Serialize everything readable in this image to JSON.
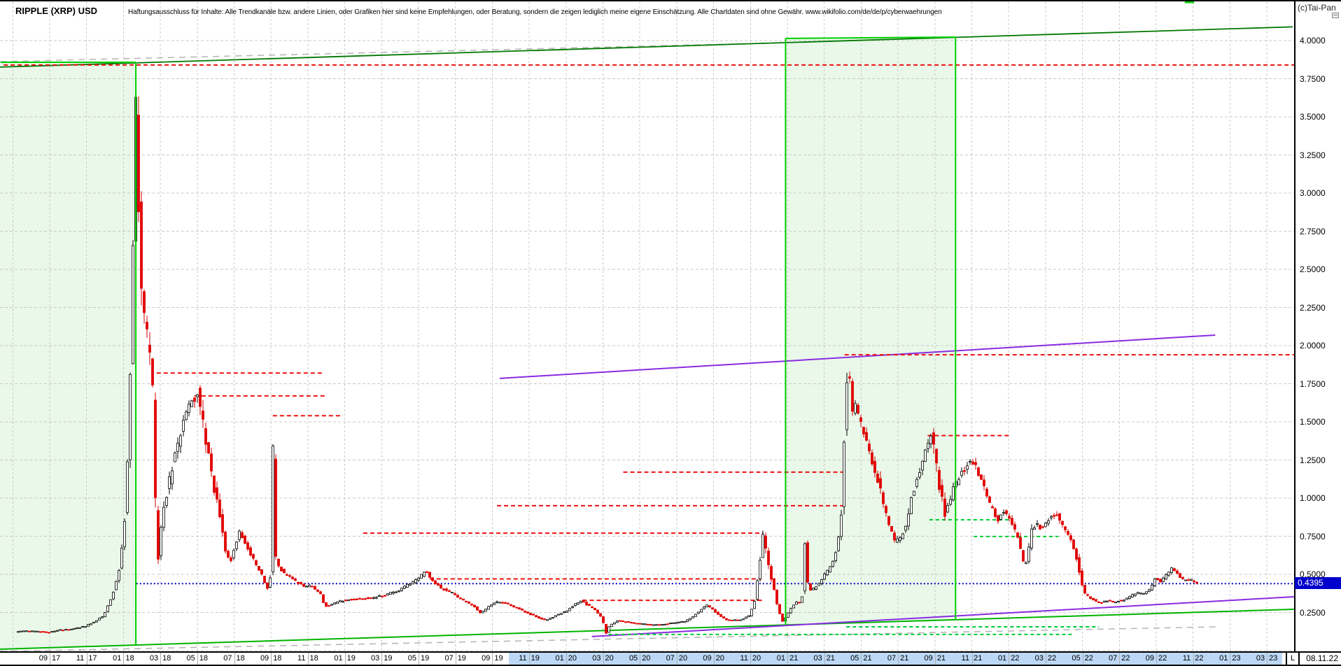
{
  "window": {
    "title": "RIPPLE (XRP) USD",
    "copyright": "(c)Tai-Pan",
    "disclaimer": "Haftungsausschluss für Inhalte: Alle Trendkanäle bzw. andere Linien, oder Grafiken hier sind keine Empfehlungen, oder Beratung, sondern die zeigen lediglich meine eigene Einschätzung. Alle Chartdaten sind ohne Gewähr.  www.wikifolio.com/de/de/p/cyberwaehrungen"
  },
  "status_bar": {
    "period_letter": "L",
    "last_session": "08.11.22"
  },
  "y_axis": {
    "tick_labels": [
      "4.0000",
      "3.7500",
      "3.5000",
      "3.2500",
      "3.0000",
      "2.7500",
      "2.5000",
      "2.2500",
      "2.0000",
      "1.7500",
      "1.5000",
      "1.2500",
      "1.0000",
      "0.7500",
      "0.5000",
      "0.2500"
    ],
    "tick_prices": [
      4.0,
      3.75,
      3.5,
      3.25,
      3.0,
      2.75,
      2.5,
      2.25,
      2.0,
      1.75,
      1.5,
      1.25,
      1.0,
      0.75,
      0.5,
      0.25
    ],
    "current_price_label": "0.4395",
    "current_price": 0.4395
  },
  "x_axis": {
    "tick_labels": [
      [
        "09",
        "17"
      ],
      [
        "11",
        "17"
      ],
      [
        "01",
        "18"
      ],
      [
        "03",
        "18"
      ],
      [
        "05",
        "18"
      ],
      [
        "07",
        "18"
      ],
      [
        "09",
        "18"
      ],
      [
        "11",
        "18"
      ],
      [
        "01",
        "19"
      ],
      [
        "03",
        "19"
      ],
      [
        "05",
        "19"
      ],
      [
        "07",
        "19"
      ],
      [
        "09",
        "19"
      ],
      [
        "11",
        "19"
      ],
      [
        "01",
        "20"
      ],
      [
        "03",
        "20"
      ],
      [
        "05",
        "20"
      ],
      [
        "07",
        "20"
      ],
      [
        "09",
        "20"
      ],
      [
        "11",
        "20"
      ],
      [
        "01",
        "21"
      ],
      [
        "03",
        "21"
      ],
      [
        "05",
        "21"
      ],
      [
        "07",
        "21"
      ],
      [
        "09",
        "21"
      ],
      [
        "11",
        "21"
      ],
      [
        "01",
        "22"
      ],
      [
        "03",
        "22"
      ],
      [
        "05",
        "22"
      ],
      [
        "07",
        "22"
      ],
      [
        "09",
        "22"
      ],
      [
        "11",
        "22"
      ],
      [
        "01",
        "23"
      ],
      [
        "03",
        "23"
      ]
    ],
    "t_first_label": 2,
    "t_label_step": 2,
    "highlight_t": [
      26.9,
      68.85
    ]
  },
  "chart_data": {
    "type": "candlestick",
    "title": "RIPPLE (XRP) USD",
    "time_unit": "months since 2017-07 (t=2 equals 2017-09)",
    "ylim": [
      0,
      4.25
    ],
    "grid": true,
    "price_path_t_price": [
      [
        -0.1,
        0.115
      ],
      [
        0.6,
        0.13
      ],
      [
        1.4,
        0.125
      ],
      [
        2.0,
        0.12
      ],
      [
        2.6,
        0.135
      ],
      [
        3.1,
        0.14
      ],
      [
        3.6,
        0.15
      ],
      [
        4.0,
        0.16
      ],
      [
        4.5,
        0.19
      ],
      [
        5.0,
        0.23
      ],
      [
        5.4,
        0.34
      ],
      [
        5.8,
        0.5
      ],
      [
        6.1,
        0.78
      ],
      [
        6.35,
        1.4
      ],
      [
        6.5,
        2.1
      ],
      [
        6.6,
        2.7
      ],
      [
        6.68,
        3.2
      ],
      [
        6.74,
        3.6
      ],
      [
        6.82,
        3.25
      ],
      [
        6.9,
        2.9
      ],
      [
        7.0,
        2.5
      ],
      [
        7.15,
        2.25
      ],
      [
        7.3,
        2.1
      ],
      [
        7.45,
        2.0
      ],
      [
        7.6,
        1.85
      ],
      [
        7.72,
        1.45
      ],
      [
        7.82,
        0.9
      ],
      [
        7.92,
        0.56
      ],
      [
        8.05,
        0.75
      ],
      [
        8.2,
        0.9
      ],
      [
        8.45,
        1.05
      ],
      [
        8.7,
        1.2
      ],
      [
        9.0,
        1.35
      ],
      [
        9.3,
        1.5
      ],
      [
        9.6,
        1.6
      ],
      [
        9.85,
        1.65
      ],
      [
        10.1,
        1.68
      ],
      [
        10.35,
        1.5
      ],
      [
        10.6,
        1.33
      ],
      [
        10.85,
        1.15
      ],
      [
        11.1,
        1.0
      ],
      [
        11.35,
        0.87
      ],
      [
        11.6,
        0.66
      ],
      [
        11.85,
        0.58
      ],
      [
        12.1,
        0.68
      ],
      [
        12.35,
        0.78
      ],
      [
        12.6,
        0.73
      ],
      [
        12.85,
        0.66
      ],
      [
        13.1,
        0.6
      ],
      [
        13.35,
        0.54
      ],
      [
        13.6,
        0.49
      ],
      [
        13.85,
        0.4
      ],
      [
        14.05,
        0.5
      ],
      [
        14.16,
        1.45
      ],
      [
        14.28,
        0.62
      ],
      [
        14.5,
        0.55
      ],
      [
        14.75,
        0.51
      ],
      [
        15.0,
        0.49
      ],
      [
        15.3,
        0.46
      ],
      [
        15.6,
        0.44
      ],
      [
        15.9,
        0.42
      ],
      [
        16.2,
        0.43
      ],
      [
        16.5,
        0.4
      ],
      [
        16.75,
        0.37
      ],
      [
        17.0,
        0.29
      ],
      [
        17.3,
        0.3
      ],
      [
        17.7,
        0.32
      ],
      [
        18.1,
        0.33
      ],
      [
        18.5,
        0.335
      ],
      [
        18.9,
        0.34
      ],
      [
        19.3,
        0.345
      ],
      [
        19.7,
        0.35
      ],
      [
        20.1,
        0.36
      ],
      [
        20.5,
        0.375
      ],
      [
        20.9,
        0.39
      ],
      [
        21.3,
        0.42
      ],
      [
        21.6,
        0.44
      ],
      [
        21.9,
        0.46
      ],
      [
        22.2,
        0.49
      ],
      [
        22.5,
        0.52
      ],
      [
        22.75,
        0.47
      ],
      [
        23.0,
        0.44
      ],
      [
        23.3,
        0.41
      ],
      [
        23.6,
        0.395
      ],
      [
        23.9,
        0.38
      ],
      [
        24.2,
        0.35
      ],
      [
        24.5,
        0.33
      ],
      [
        24.8,
        0.31
      ],
      [
        25.1,
        0.29
      ],
      [
        25.4,
        0.245
      ],
      [
        25.7,
        0.27
      ],
      [
        26.0,
        0.3
      ],
      [
        26.3,
        0.32
      ],
      [
        26.6,
        0.315
      ],
      [
        27.0,
        0.3
      ],
      [
        27.3,
        0.285
      ],
      [
        27.6,
        0.27
      ],
      [
        27.9,
        0.25
      ],
      [
        28.3,
        0.23
      ],
      [
        28.6,
        0.215
      ],
      [
        28.9,
        0.2
      ],
      [
        29.2,
        0.21
      ],
      [
        29.5,
        0.23
      ],
      [
        29.8,
        0.245
      ],
      [
        30.1,
        0.26
      ],
      [
        30.5,
        0.3
      ],
      [
        30.9,
        0.33
      ],
      [
        31.2,
        0.3
      ],
      [
        31.5,
        0.28
      ],
      [
        31.8,
        0.245
      ],
      [
        32.05,
        0.21
      ],
      [
        32.2,
        0.1
      ],
      [
        32.35,
        0.15
      ],
      [
        32.5,
        0.17
      ],
      [
        32.7,
        0.185
      ],
      [
        32.9,
        0.2
      ],
      [
        33.2,
        0.19
      ],
      [
        33.5,
        0.185
      ],
      [
        33.8,
        0.18
      ],
      [
        34.2,
        0.175
      ],
      [
        34.6,
        0.17
      ],
      [
        35.0,
        0.17
      ],
      [
        35.4,
        0.175
      ],
      [
        35.8,
        0.18
      ],
      [
        36.1,
        0.185
      ],
      [
        36.5,
        0.19
      ],
      [
        36.9,
        0.22
      ],
      [
        37.3,
        0.26
      ],
      [
        37.7,
        0.3
      ],
      [
        38.0,
        0.27
      ],
      [
        38.2,
        0.25
      ],
      [
        38.5,
        0.22
      ],
      [
        38.8,
        0.2
      ],
      [
        39.1,
        0.2
      ],
      [
        39.4,
        0.2
      ],
      [
        39.7,
        0.21
      ],
      [
        40.0,
        0.23
      ],
      [
        40.3,
        0.33
      ],
      [
        40.55,
        0.55
      ],
      [
        40.7,
        0.77
      ],
      [
        40.85,
        0.7
      ],
      [
        41.0,
        0.6
      ],
      [
        41.15,
        0.5
      ],
      [
        41.35,
        0.4
      ],
      [
        41.55,
        0.28
      ],
      [
        41.8,
        0.19
      ],
      [
        42.0,
        0.22
      ],
      [
        42.2,
        0.27
      ],
      [
        42.4,
        0.3
      ],
      [
        42.6,
        0.32
      ],
      [
        42.85,
        0.32
      ],
      [
        43.02,
        0.72
      ],
      [
        43.15,
        0.44
      ],
      [
        43.35,
        0.39
      ],
      [
        43.6,
        0.42
      ],
      [
        43.85,
        0.45
      ],
      [
        44.1,
        0.5
      ],
      [
        44.35,
        0.54
      ],
      [
        44.6,
        0.6
      ],
      [
        44.8,
        0.68
      ],
      [
        45.0,
        0.92
      ],
      [
        45.15,
        1.4
      ],
      [
        45.28,
        1.75
      ],
      [
        45.38,
        1.93
      ],
      [
        45.5,
        1.65
      ],
      [
        45.62,
        1.55
      ],
      [
        45.75,
        1.6
      ],
      [
        45.9,
        1.55
      ],
      [
        46.05,
        1.48
      ],
      [
        46.2,
        1.42
      ],
      [
        46.45,
        1.33
      ],
      [
        46.7,
        1.22
      ],
      [
        47.0,
        1.1
      ],
      [
        47.3,
        0.95
      ],
      [
        47.6,
        0.82
      ],
      [
        47.9,
        0.71
      ],
      [
        48.2,
        0.74
      ],
      [
        48.5,
        0.82
      ],
      [
        48.8,
        1.0
      ],
      [
        49.2,
        1.16
      ],
      [
        49.55,
        1.3
      ],
      [
        49.9,
        1.41
      ],
      [
        50.15,
        1.2
      ],
      [
        50.4,
        1.02
      ],
      [
        50.6,
        0.9
      ],
      [
        50.85,
        0.97
      ],
      [
        51.1,
        1.08
      ],
      [
        51.4,
        1.14
      ],
      [
        51.7,
        1.19
      ],
      [
        52.0,
        1.26
      ],
      [
        52.3,
        1.2
      ],
      [
        52.6,
        1.12
      ],
      [
        52.9,
        1.0
      ],
      [
        53.2,
        0.92
      ],
      [
        53.5,
        0.86
      ],
      [
        53.8,
        0.92
      ],
      [
        54.05,
        0.87
      ],
      [
        54.35,
        0.8
      ],
      [
        54.6,
        0.72
      ],
      [
        54.9,
        0.55
      ],
      [
        55.1,
        0.62
      ],
      [
        55.3,
        0.78
      ],
      [
        55.55,
        0.83
      ],
      [
        55.8,
        0.8
      ],
      [
        56.1,
        0.84
      ],
      [
        56.35,
        0.87
      ],
      [
        56.6,
        0.9
      ],
      [
        56.9,
        0.85
      ],
      [
        57.15,
        0.78
      ],
      [
        57.4,
        0.73
      ],
      [
        57.65,
        0.66
      ],
      [
        57.9,
        0.52
      ],
      [
        58.15,
        0.38
      ],
      [
        58.4,
        0.35
      ],
      [
        58.7,
        0.33
      ],
      [
        59.0,
        0.31
      ],
      [
        59.4,
        0.33
      ],
      [
        59.8,
        0.32
      ],
      [
        60.2,
        0.33
      ],
      [
        60.6,
        0.35
      ],
      [
        61.0,
        0.38
      ],
      [
        61.4,
        0.37
      ],
      [
        61.75,
        0.4
      ],
      [
        62.05,
        0.48
      ],
      [
        62.3,
        0.45
      ],
      [
        62.6,
        0.5
      ],
      [
        62.95,
        0.54
      ],
      [
        63.3,
        0.49
      ],
      [
        63.6,
        0.46
      ],
      [
        63.9,
        0.47
      ],
      [
        64.15,
        0.45
      ],
      [
        64.35,
        0.44
      ]
    ],
    "levels_red_dashed": [
      {
        "price": 3.84,
        "t": [
          -0.5,
          69.5
        ]
      },
      {
        "price": 1.94,
        "t": [
          45.1,
          69.5
        ]
      },
      {
        "price": 1.82,
        "t": [
          7.8,
          16.8
        ]
      },
      {
        "price": 1.67,
        "t": [
          9.85,
          16.95
        ]
      },
      {
        "price": 1.54,
        "t": [
          14.1,
          17.9
        ]
      },
      {
        "price": 1.41,
        "t": [
          49.6,
          54.1
        ]
      },
      {
        "price": 1.17,
        "t": [
          33.1,
          45.0
        ]
      },
      {
        "price": 0.95,
        "t": [
          26.25,
          45.0
        ]
      },
      {
        "price": 0.77,
        "t": [
          19.0,
          40.7
        ]
      },
      {
        "price": 0.47,
        "t": [
          22.6,
          40.6
        ]
      },
      {
        "price": 0.33,
        "t": [
          30.9,
          40.7
        ]
      }
    ],
    "levels_green_dashed": [
      {
        "price": 0.858,
        "t": [
          49.7,
          54.2
        ]
      },
      {
        "price": 0.748,
        "t": [
          52.1,
          56.7
        ]
      },
      {
        "price": 0.156,
        "t": [
          45.2,
          58.9
        ]
      },
      {
        "price": 0.106,
        "t": [
          32.3,
          57.5
        ]
      }
    ],
    "current_price_line": {
      "price": 0.4395,
      "t": [
        6.7,
        69.5
      ],
      "color": "#0000bb"
    },
    "trendlines": [
      {
        "name": "purple-upper",
        "color": "#8a2be2",
        "style": "solid",
        "t": [
          26.4,
          65.2
        ],
        "price": [
          1.785,
          2.069
        ]
      },
      {
        "name": "purple-lower",
        "color": "#8a2be2",
        "style": "solid",
        "t": [
          31.4,
          69.5
        ],
        "price": [
          0.092,
          0.353
        ]
      },
      {
        "name": "green-resistance",
        "color": "#007700",
        "style": "solid",
        "t": [
          -0.69,
          69.4
        ],
        "price": [
          3.826,
          4.09
        ]
      },
      {
        "name": "green-support",
        "color": "#00b400",
        "style": "solid",
        "t": [
          -0.69,
          69.5
        ],
        "price": [
          0.009,
          0.271
        ]
      },
      {
        "name": "gray-upper",
        "color": "#b4b4b4",
        "style": "dashed",
        "t": [
          -0.69,
          41.9
        ],
        "price": [
          3.862,
          3.986
        ]
      },
      {
        "name": "gray-lower",
        "color": "#b4b4b4",
        "style": "dashed",
        "t": [
          -0.69,
          65.3
        ],
        "price": [
          -0.005,
          0.156
        ]
      }
    ],
    "bands_green": [
      {
        "name": "band-2017-jan2018",
        "t": [
          -0.69,
          6.67
        ],
        "top_price": [
          3.858,
          3.858
        ],
        "bottom": "green-support"
      },
      {
        "name": "band-2021",
        "t": [
          41.9,
          51.12
        ],
        "top_price": [
          4.014,
          4.023
        ],
        "bottom": "green-support"
      }
    ],
    "top_marker_green": {
      "t": [
        63.55,
        64.05
      ],
      "price": 4.251
    },
    "colors": {
      "candle_down": "#e00000",
      "candle_up_fill": "#ffffff",
      "candle_stroke": "#000000",
      "band_fill": "#e9f8e9",
      "band_edge": "#00cf00",
      "grid": "#c9c9c9",
      "axis_highlight": "#bcd8f6",
      "badge_bg": "#0000cc"
    }
  }
}
